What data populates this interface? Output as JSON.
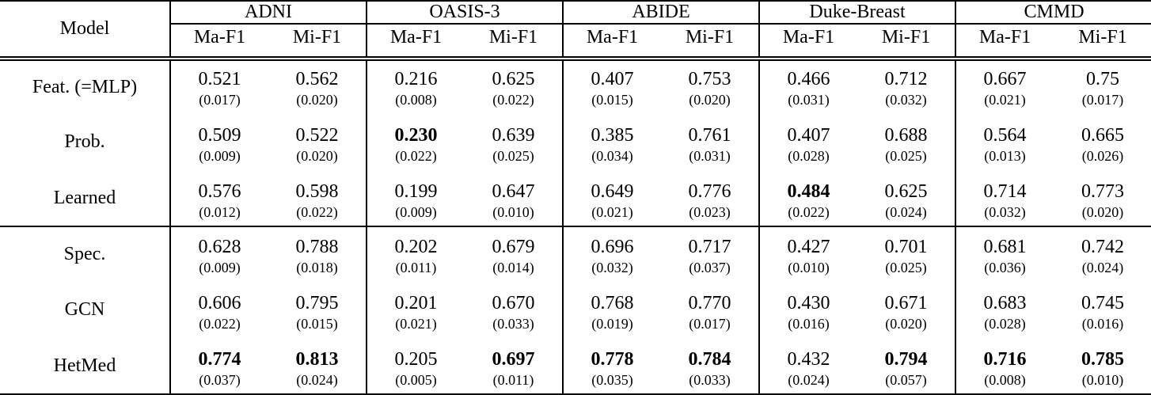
{
  "table": {
    "model_header": "Model",
    "datasets": [
      "ADNI",
      "OASIS-3",
      "ABIDE",
      "Duke-Breast",
      "CMMD"
    ],
    "subheaders": [
      "Ma-F1",
      "Mi-F1"
    ],
    "rows": [
      {
        "model": "Feat. (=MLP)",
        "separator_above": false,
        "values": [
          "0.521",
          "0.562",
          "0.216",
          "0.625",
          "0.407",
          "0.753",
          "0.466",
          "0.712",
          "0.667",
          "0.75"
        ],
        "stds": [
          "(0.017)",
          "(0.020)",
          "(0.008)",
          "(0.022)",
          "(0.015)",
          "(0.020)",
          "(0.031)",
          "(0.032)",
          "(0.021)",
          "(0.017)"
        ],
        "bold": [
          false,
          false,
          false,
          false,
          false,
          false,
          false,
          false,
          false,
          false
        ]
      },
      {
        "model": "Prob.",
        "separator_above": false,
        "values": [
          "0.509",
          "0.522",
          "0.230",
          "0.639",
          "0.385",
          "0.761",
          "0.407",
          "0.688",
          "0.564",
          "0.665"
        ],
        "stds": [
          "(0.009)",
          "(0.020)",
          "(0.022)",
          "(0.025)",
          "(0.034)",
          "(0.031)",
          "(0.028)",
          "(0.025)",
          "(0.013)",
          "(0.026)"
        ],
        "bold": [
          false,
          false,
          true,
          false,
          false,
          false,
          false,
          false,
          false,
          false
        ]
      },
      {
        "model": "Learned",
        "separator_above": false,
        "values": [
          "0.576",
          "0.598",
          "0.199",
          "0.647",
          "0.649",
          "0.776",
          "0.484",
          "0.625",
          "0.714",
          "0.773"
        ],
        "stds": [
          "(0.012)",
          "(0.022)",
          "(0.009)",
          "(0.010)",
          "(0.021)",
          "(0.023)",
          "(0.022)",
          "(0.024)",
          "(0.032)",
          "(0.020)"
        ],
        "bold": [
          false,
          false,
          false,
          false,
          false,
          false,
          true,
          false,
          false,
          false
        ]
      },
      {
        "model": "Spec.",
        "separator_above": true,
        "values": [
          "0.628",
          "0.788",
          "0.202",
          "0.679",
          "0.696",
          "0.717",
          "0.427",
          "0.701",
          "0.681",
          "0.742"
        ],
        "stds": [
          "(0.009)",
          "(0.018)",
          "(0.011)",
          "(0.014)",
          "(0.032)",
          "(0.037)",
          "(0.010)",
          "(0.025)",
          "(0.036)",
          "(0.024)"
        ],
        "bold": [
          false,
          false,
          false,
          false,
          false,
          false,
          false,
          false,
          false,
          false
        ]
      },
      {
        "model": "GCN",
        "separator_above": false,
        "values": [
          "0.606",
          "0.795",
          "0.201",
          "0.670",
          "0.768",
          "0.770",
          "0.430",
          "0.671",
          "0.683",
          "0.745"
        ],
        "stds": [
          "(0.022)",
          "(0.015)",
          "(0.021)",
          "(0.033)",
          "(0.019)",
          "(0.017)",
          "(0.016)",
          "(0.020)",
          "(0.028)",
          "(0.016)"
        ],
        "bold": [
          false,
          false,
          false,
          false,
          false,
          false,
          false,
          false,
          false,
          false
        ]
      },
      {
        "model": "HetMed",
        "separator_above": false,
        "values": [
          "0.774",
          "0.813",
          "0.205",
          "0.697",
          "0.778",
          "0.784",
          "0.432",
          "0.794",
          "0.716",
          "0.785"
        ],
        "stds": [
          "(0.037)",
          "(0.024)",
          "(0.005)",
          "(0.011)",
          "(0.035)",
          "(0.033)",
          "(0.024)",
          "(0.057)",
          "(0.008)",
          "(0.010)"
        ],
        "bold": [
          true,
          true,
          false,
          true,
          true,
          true,
          false,
          true,
          true,
          true
        ]
      }
    ]
  }
}
